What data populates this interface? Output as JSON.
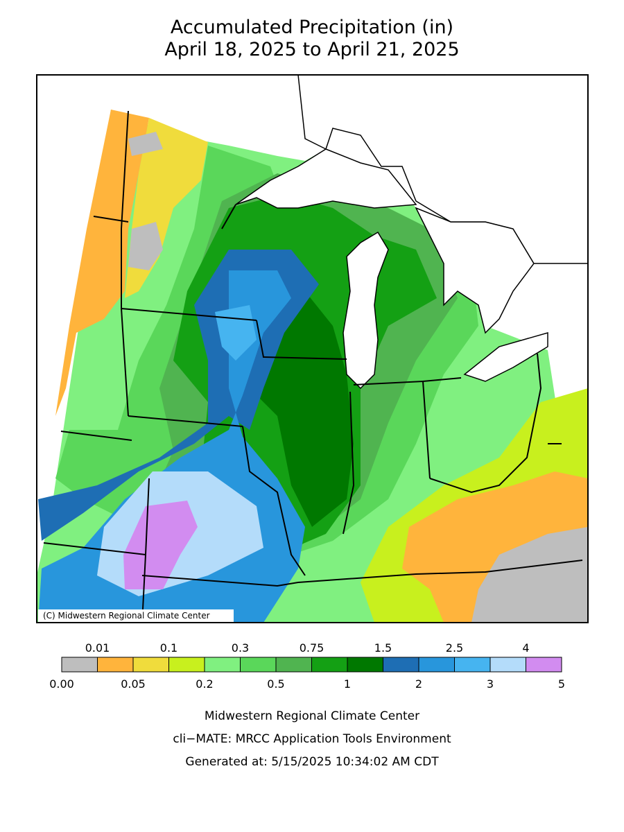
{
  "title": "Accumulated Precipitation (in)",
  "subtitle": "April 18, 2025 to April 21, 2025",
  "copyright": "(C) Midwestern Regional Climate Center",
  "legend": {
    "colors": [
      "#bebebe",
      "#ffb43c",
      "#f0dc3c",
      "#c8f01e",
      "#80f080",
      "#5ad75a",
      "#50b450",
      "#14a014",
      "#007800",
      "#1e6eb4",
      "#2896dc",
      "#46b4f0",
      "#b4dcfa",
      "#d28cf0"
    ],
    "upper_labels": [
      "0.01",
      "0.1",
      "0.3",
      "0.75",
      "1.5",
      "2.5",
      "4"
    ],
    "lower_labels": [
      "0.00",
      "0.05",
      "0.2",
      "0.5",
      "1",
      "2",
      "3",
      "5"
    ]
  },
  "footer": [
    "Midwestern Regional Climate Center",
    "cli−MATE: MRCC Application Tools Environment",
    "Generated at: 5/15/2025 10:34:02 AM CDT"
  ]
}
